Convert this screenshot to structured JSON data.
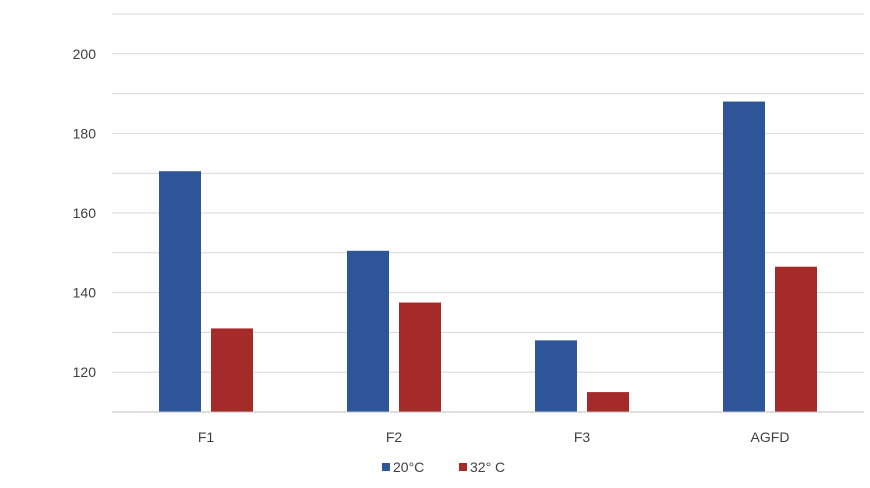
{
  "chart_data": {
    "type": "bar",
    "categories": [
      "F1",
      "F2",
      "F3",
      "AGFD"
    ],
    "series": [
      {
        "name": "20°C",
        "values": [
          170.5,
          150.5,
          128,
          188
        ],
        "color": "#2e5597"
      },
      {
        "name": "32° C",
        "values": [
          131,
          137.5,
          115,
          146.5
        ],
        "color": "#a52a2a"
      }
    ],
    "title": "",
    "xlabel": "",
    "ylabel": "",
    "ylim": [
      110,
      210
    ],
    "yticks": [
      120,
      140,
      160,
      180,
      200
    ],
    "grid": true,
    "legend_position": "bottom"
  }
}
